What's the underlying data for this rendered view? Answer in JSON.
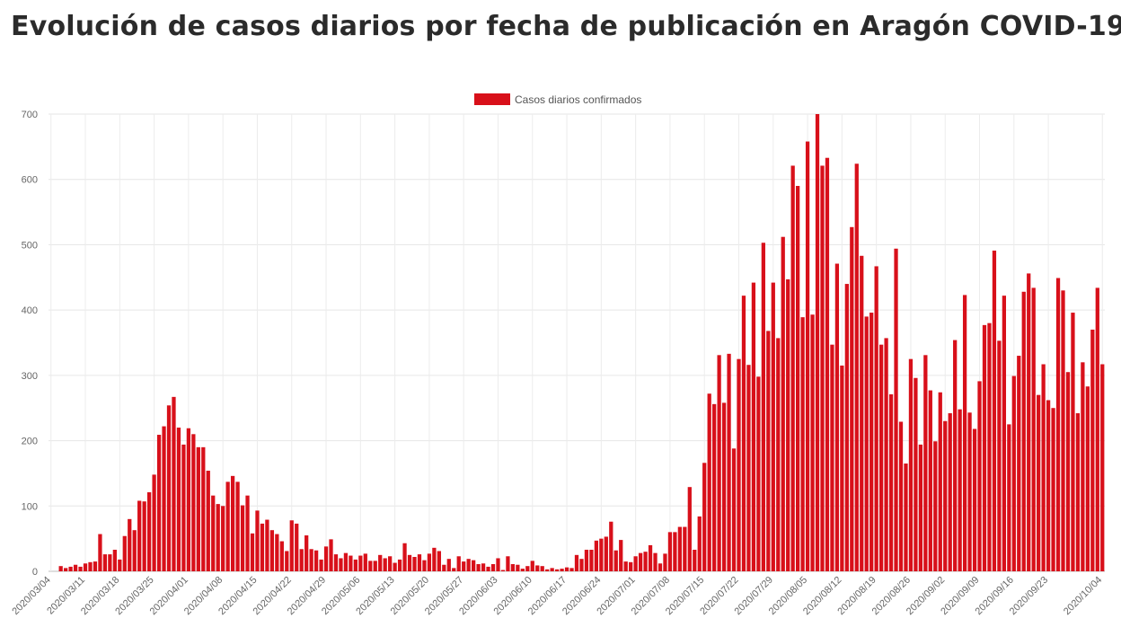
{
  "title": "Evolución de casos diarios por fecha de publicación en Aragón COVID-19",
  "chart_data": {
    "type": "bar",
    "title": "Evolución de casos diarios por fecha de publicación en Aragón COVID-19",
    "start_date": "2020/03/04",
    "end_date": "2020/10/04",
    "series": [
      {
        "name": "Casos diarios confirmados",
        "color": "#d8101a",
        "values": [
          0,
          0,
          8,
          5,
          7,
          10,
          7,
          12,
          14,
          15,
          57,
          26,
          26,
          33,
          18,
          54,
          80,
          63,
          108,
          107,
          121,
          148,
          209,
          222,
          254,
          267,
          220,
          194,
          219,
          210,
          190,
          190,
          154,
          116,
          103,
          100,
          137,
          146,
          137,
          101,
          116,
          58,
          93,
          73,
          79,
          63,
          57,
          46,
          31,
          78,
          73,
          34,
          55,
          34,
          32,
          18,
          38,
          49,
          26,
          20,
          28,
          24,
          18,
          24,
          27,
          16,
          16,
          25,
          20,
          23,
          13,
          18,
          43,
          25,
          22,
          26,
          17,
          27,
          36,
          31,
          10,
          19,
          5,
          23,
          15,
          19,
          17,
          11,
          12,
          7,
          11,
          20,
          2,
          23,
          11,
          10,
          4,
          8,
          16,
          9,
          8,
          3,
          5,
          3,
          4,
          6,
          5,
          25,
          19,
          33,
          33,
          47,
          50,
          53,
          76,
          32,
          48,
          15,
          14,
          23,
          28,
          30,
          40,
          28,
          12,
          27,
          60,
          60,
          68,
          68,
          129,
          33,
          84,
          166,
          272,
          256,
          331,
          258,
          333,
          188,
          325,
          422,
          316,
          442,
          298,
          503,
          368,
          442,
          357,
          512,
          447,
          621,
          590,
          389,
          658,
          393,
          700,
          621,
          633,
          347,
          471,
          315,
          440,
          527,
          624,
          483,
          390,
          396,
          467,
          347,
          357,
          271,
          494,
          229,
          165,
          325,
          296,
          194,
          331,
          277,
          199,
          274,
          230,
          242,
          354,
          248,
          423,
          243,
          218,
          291,
          377,
          380,
          491,
          353,
          422,
          225,
          299,
          330,
          428,
          456,
          434,
          270,
          317,
          262,
          250,
          449,
          430,
          305,
          396,
          242,
          320,
          283,
          370,
          434,
          317
        ]
      }
    ],
    "x_tick_labels": [
      "2020/03/04",
      "2020/03/11",
      "2020/03/18",
      "2020/03/25",
      "2020/04/01",
      "2020/04/08",
      "2020/04/15",
      "2020/04/22",
      "2020/04/29",
      "2020/05/06",
      "2020/05/13",
      "2020/05/20",
      "2020/05/27",
      "2020/06/03",
      "2020/06/10",
      "2020/06/17",
      "2020/06/24",
      "2020/07/01",
      "2020/07/08",
      "2020/07/15",
      "2020/07/22",
      "2020/07/29",
      "2020/08/05",
      "2020/08/12",
      "2020/08/19",
      "2020/08/26",
      "2020/09/02",
      "2020/09/09",
      "2020/09/16",
      "2020/09/23",
      "2020/10/04"
    ],
    "y_ticks": [
      0,
      100,
      200,
      300,
      400,
      500,
      600,
      700
    ],
    "ylim": [
      0,
      700
    ],
    "grid": true,
    "legend": "top-center"
  }
}
